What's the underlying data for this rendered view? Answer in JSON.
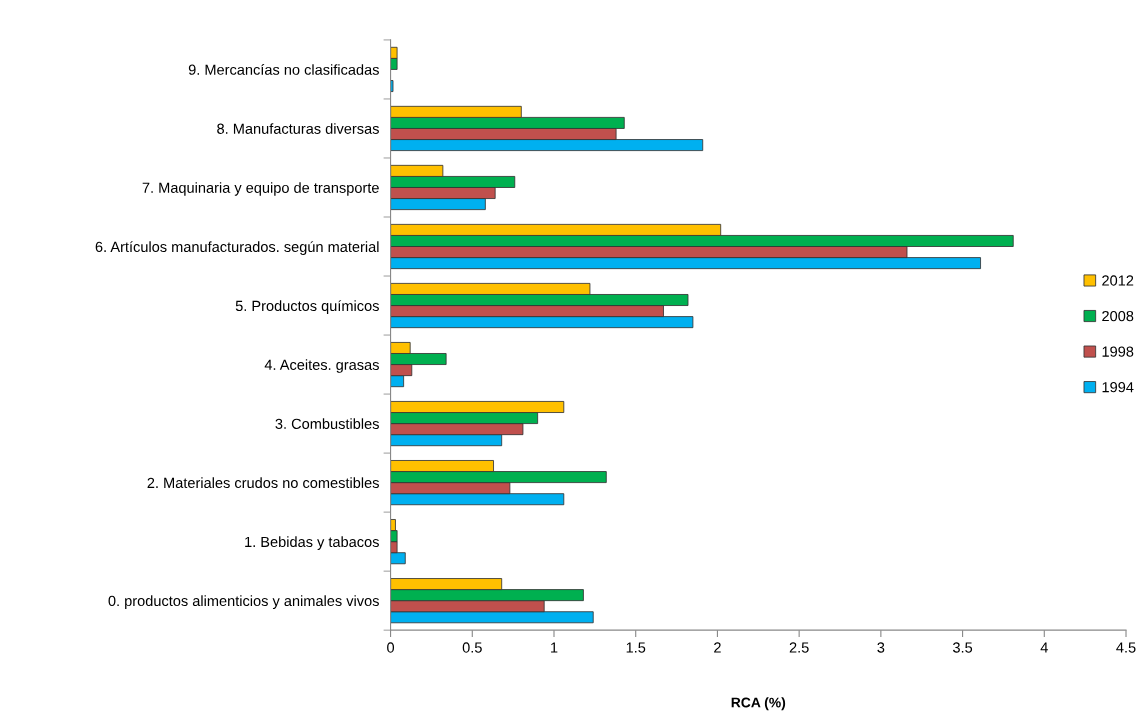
{
  "chart_data": {
    "type": "bar",
    "orientation": "horizontal",
    "xlabel": "RCA (%)",
    "categories": [
      "9. Mercancías no clasificadas",
      "8. Manufacturas diversas",
      "7. Maquinaria y equipo de transporte",
      "6. Artículos manufacturados. según material",
      "5. Productos químicos",
      "4. Aceites. grasas",
      "3. Combustibles",
      "2. Materiales crudos no comestibles",
      "1. Bebidas y tabacos",
      "0. productos alimenticios y animales vivos"
    ],
    "series": [
      {
        "name": "1994",
        "color": "#00b0f0",
        "values": [
          0.015,
          1.91,
          0.58,
          3.61,
          1.85,
          0.08,
          0.68,
          1.06,
          0.09,
          1.24
        ]
      },
      {
        "name": "1998",
        "color": "#c0504d",
        "values": [
          null,
          1.38,
          0.64,
          3.16,
          1.67,
          0.13,
          0.81,
          0.73,
          0.04,
          0.94
        ]
      },
      {
        "name": "2008",
        "color": "#00b050",
        "values": [
          0.04,
          1.43,
          0.76,
          3.81,
          1.82,
          0.34,
          0.9,
          1.32,
          0.04,
          1.18
        ]
      },
      {
        "name": "2012",
        "color": "#ffc000",
        "values": [
          0.04,
          0.8,
          0.32,
          2.02,
          1.22,
          0.12,
          1.06,
          0.63,
          0.03,
          0.68
        ]
      }
    ],
    "xlim": [
      0,
      4.5
    ],
    "xticks": [
      0,
      0.5,
      1,
      1.5,
      2,
      2.5,
      3,
      3.5,
      4,
      4.5
    ],
    "grid": false,
    "legend": "right"
  }
}
